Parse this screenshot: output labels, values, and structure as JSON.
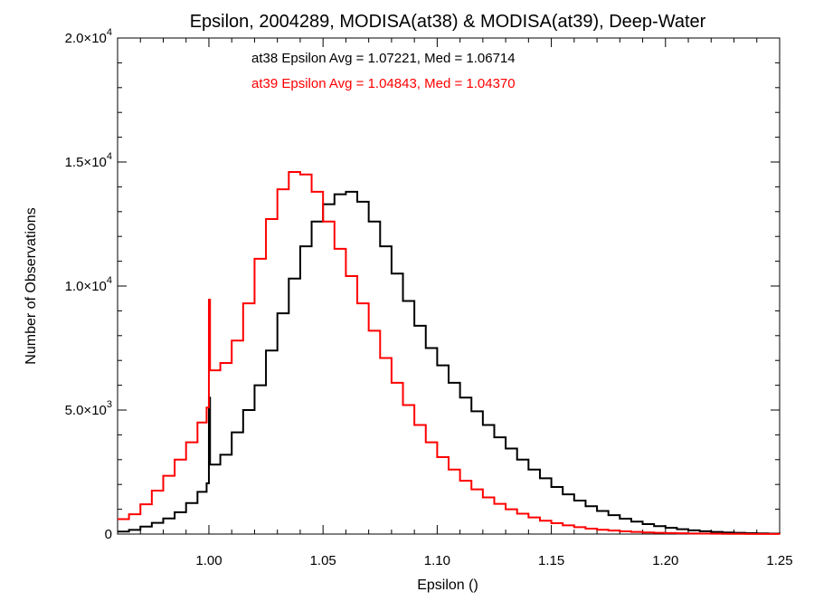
{
  "chart_data": {
    "type": "line",
    "title": "Epsilon, 2004289, MODISA(at38) & MODISA(at39), Deep-Water",
    "xlabel": "Epsilon ()",
    "ylabel": "Number of Observations",
    "xlim": [
      0.96,
      1.25
    ],
    "ylim": [
      0,
      20000
    ],
    "x_ticks": [
      1.0,
      1.05,
      1.1,
      1.15,
      1.2,
      1.25
    ],
    "x_tick_labels": [
      "1.00",
      "1.05",
      "1.10",
      "1.15",
      "1.20",
      "1.25"
    ],
    "y_ticks": [
      0,
      5000,
      10000,
      15000,
      20000
    ],
    "y_tick_labels": [
      {
        "mantissa": "0",
        "exp": ""
      },
      {
        "mantissa": "5.0×10",
        "exp": "3"
      },
      {
        "mantissa": "1.0×10",
        "exp": "4"
      },
      {
        "mantissa": "1.5×10",
        "exp": "4"
      },
      {
        "mantissa": "2.0×10",
        "exp": "4"
      }
    ],
    "annotations": [
      {
        "text": "at38 Epsilon Avg = 1.07221, Med = 1.06714",
        "color": "#000000"
      },
      {
        "text": "at39 Epsilon Avg = 1.04843, Med = 1.04370",
        "color": "#ff0000"
      }
    ],
    "series": [
      {
        "color": "#000000",
        "style": "step",
        "points": [
          [
            0.96,
            100
          ],
          [
            0.965,
            170
          ],
          [
            0.97,
            300
          ],
          [
            0.975,
            450
          ],
          [
            0.98,
            630
          ],
          [
            0.985,
            880
          ],
          [
            0.99,
            1250
          ],
          [
            0.995,
            1700
          ],
          [
            0.999,
            2050
          ],
          [
            1.0,
            5500
          ],
          [
            1.0005,
            2800
          ],
          [
            1.005,
            3200
          ],
          [
            1.01,
            4100
          ],
          [
            1.015,
            5000
          ],
          [
            1.02,
            6000
          ],
          [
            1.025,
            7400
          ],
          [
            1.03,
            8900
          ],
          [
            1.035,
            10300
          ],
          [
            1.04,
            11600
          ],
          [
            1.045,
            12600
          ],
          [
            1.05,
            13300
          ],
          [
            1.055,
            13700
          ],
          [
            1.06,
            13800
          ],
          [
            1.065,
            13400
          ],
          [
            1.07,
            12600
          ],
          [
            1.075,
            11600
          ],
          [
            1.08,
            10500
          ],
          [
            1.085,
            9400
          ],
          [
            1.09,
            8400
          ],
          [
            1.095,
            7500
          ],
          [
            1.1,
            6800
          ],
          [
            1.105,
            6100
          ],
          [
            1.11,
            5500
          ],
          [
            1.115,
            4950
          ],
          [
            1.12,
            4400
          ],
          [
            1.125,
            3900
          ],
          [
            1.13,
            3450
          ],
          [
            1.135,
            3000
          ],
          [
            1.14,
            2600
          ],
          [
            1.145,
            2250
          ],
          [
            1.15,
            1900
          ],
          [
            1.155,
            1600
          ],
          [
            1.16,
            1350
          ],
          [
            1.165,
            1120
          ],
          [
            1.17,
            930
          ],
          [
            1.175,
            760
          ],
          [
            1.18,
            620
          ],
          [
            1.185,
            500
          ],
          [
            1.19,
            400
          ],
          [
            1.195,
            320
          ],
          [
            1.2,
            250
          ],
          [
            1.205,
            195
          ],
          [
            1.21,
            150
          ],
          [
            1.215,
            115
          ],
          [
            1.22,
            85
          ],
          [
            1.225,
            65
          ],
          [
            1.23,
            50
          ],
          [
            1.235,
            38
          ],
          [
            1.24,
            28
          ],
          [
            1.245,
            20
          ],
          [
            1.25,
            15
          ]
        ]
      },
      {
        "color": "#ff0000",
        "style": "step",
        "points": [
          [
            0.96,
            600
          ],
          [
            0.965,
            800
          ],
          [
            0.97,
            1200
          ],
          [
            0.975,
            1750
          ],
          [
            0.98,
            2350
          ],
          [
            0.985,
            3000
          ],
          [
            0.99,
            3700
          ],
          [
            0.995,
            4500
          ],
          [
            0.999,
            5100
          ],
          [
            1.0,
            9450
          ],
          [
            1.0005,
            6600
          ],
          [
            1.005,
            6900
          ],
          [
            1.01,
            7800
          ],
          [
            1.015,
            9300
          ],
          [
            1.02,
            11100
          ],
          [
            1.025,
            12700
          ],
          [
            1.03,
            13900
          ],
          [
            1.035,
            14600
          ],
          [
            1.04,
            14500
          ],
          [
            1.045,
            13800
          ],
          [
            1.05,
            12600
          ],
          [
            1.055,
            11500
          ],
          [
            1.06,
            10400
          ],
          [
            1.065,
            9300
          ],
          [
            1.07,
            8200
          ],
          [
            1.075,
            7100
          ],
          [
            1.08,
            6100
          ],
          [
            1.085,
            5200
          ],
          [
            1.09,
            4400
          ],
          [
            1.095,
            3700
          ],
          [
            1.1,
            3100
          ],
          [
            1.105,
            2600
          ],
          [
            1.11,
            2150
          ],
          [
            1.115,
            1800
          ],
          [
            1.12,
            1480
          ],
          [
            1.125,
            1220
          ],
          [
            1.13,
            1000
          ],
          [
            1.135,
            820
          ],
          [
            1.14,
            670
          ],
          [
            1.145,
            540
          ],
          [
            1.15,
            440
          ],
          [
            1.155,
            350
          ],
          [
            1.16,
            280
          ],
          [
            1.165,
            220
          ],
          [
            1.17,
            175
          ],
          [
            1.175,
            140
          ],
          [
            1.18,
            110
          ],
          [
            1.185,
            85
          ],
          [
            1.19,
            65
          ],
          [
            1.195,
            50
          ],
          [
            1.2,
            40
          ],
          [
            1.205,
            30
          ],
          [
            1.21,
            22
          ],
          [
            1.215,
            17
          ],
          [
            1.22,
            12
          ],
          [
            1.225,
            9
          ],
          [
            1.23,
            7
          ],
          [
            1.235,
            5
          ],
          [
            1.24,
            4
          ],
          [
            1.245,
            3
          ],
          [
            1.25,
            2
          ]
        ]
      }
    ]
  }
}
